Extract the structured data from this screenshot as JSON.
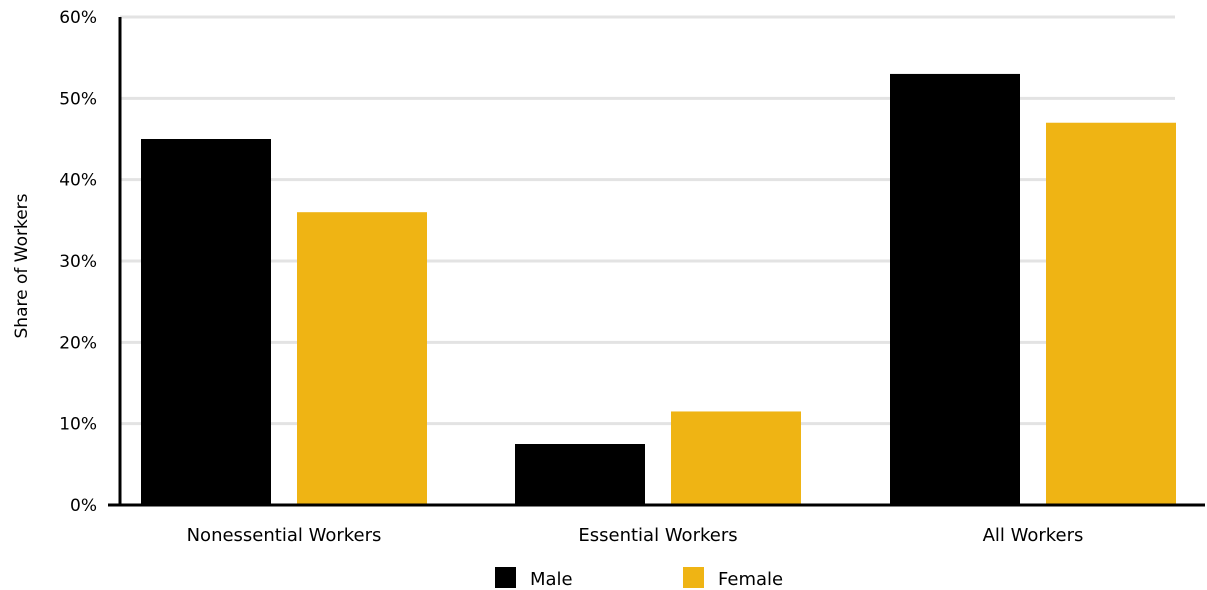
{
  "chart_data": {
    "type": "bar",
    "title": "",
    "xlabel": "",
    "ylabel": "Share of Workers",
    "categories": [
      "Nonessential Workers",
      "Essential Workers",
      "All Workers"
    ],
    "series": [
      {
        "name": "Male",
        "color": "#000000",
        "values": [
          45,
          7.5,
          53
        ]
      },
      {
        "name": "Female",
        "color": "#EFB414",
        "values": [
          36,
          11.5,
          47
        ]
      }
    ],
    "ylim": [
      0,
      60
    ],
    "yticks": [
      0,
      10,
      20,
      30,
      40,
      50,
      60
    ],
    "ytick_labels": [
      "0%",
      "10%",
      "20%",
      "30%",
      "40%",
      "50%",
      "60%"
    ],
    "grid": true,
    "legend_position": "bottom-center"
  }
}
